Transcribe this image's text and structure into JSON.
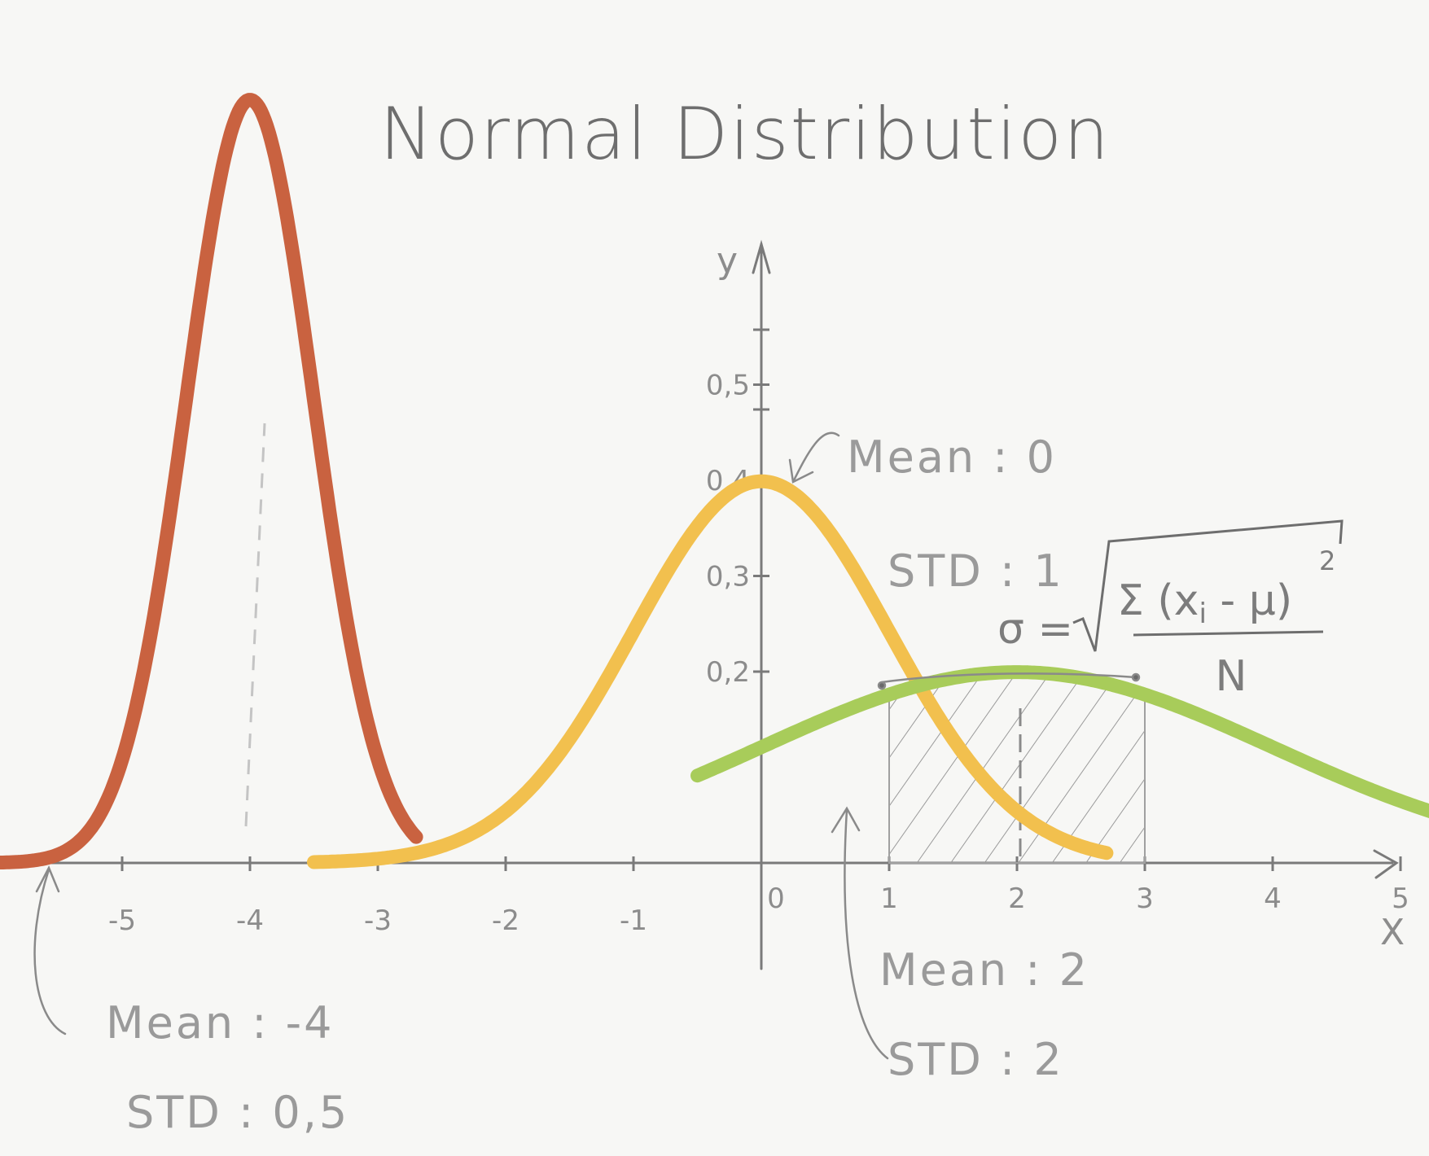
{
  "chart_data": {
    "type": "line",
    "title": "Normal Distribution",
    "xlabel": "X",
    "ylabel": "y",
    "x_ticks": [
      "-5",
      "-4",
      "-3",
      "-2",
      "-1",
      "0",
      "1",
      "2",
      "3",
      "4",
      "5"
    ],
    "y_ticks": [
      "0,2",
      "0,3",
      "0,4",
      "0,5"
    ],
    "xlim": [
      -7.2,
      5.9
    ],
    "ylim": [
      0,
      0.8
    ],
    "grid": false,
    "legend": "none",
    "series": [
      {
        "mean": -4,
        "std": 0.5,
        "color": "#c96240",
        "x_range": [
          -6.8,
          -2.7
        ]
      },
      {
        "mean": 0,
        "std": 1,
        "color": "#f2c04e",
        "x_range": [
          -3.5,
          2.7
        ]
      },
      {
        "mean": 2,
        "std": 2,
        "color": "#a8cc5a",
        "x_range": [
          -0.5,
          5.4
        ]
      }
    ],
    "shaded_region": {
      "series_index": 2,
      "x_from": 1,
      "x_to": 3
    },
    "annotations": [
      {
        "key": "red_mean",
        "text": "Mean : -4"
      },
      {
        "key": "red_std",
        "text": "STD : 0,5"
      },
      {
        "key": "yellow_mean",
        "text": "Mean : 0"
      },
      {
        "key": "yellow_std",
        "text": "STD : 1"
      },
      {
        "key": "green_mean",
        "text": "Mean : 2"
      },
      {
        "key": "green_std",
        "text": "STD : 2"
      }
    ],
    "formula": {
      "lhs": "σ =",
      "numerator": "Σ (x",
      "numerator_sub": "i",
      "numerator_tail": " - μ)",
      "exponent": "2",
      "denominator": "N"
    }
  }
}
